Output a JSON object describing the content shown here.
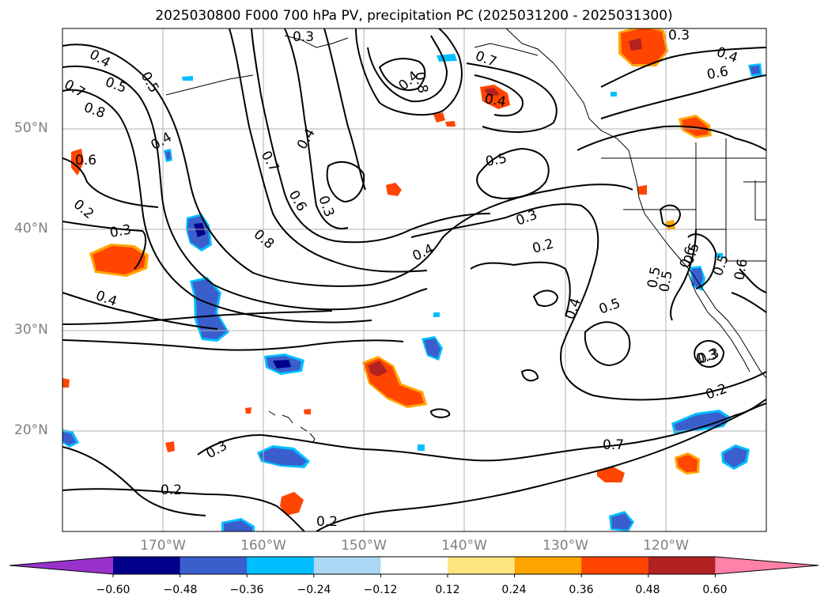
{
  "title": "2025030800 F000 700 hPa PV, precipitation PC (2025031200 - 2025031300)",
  "map": {
    "lat_labels": [
      "50°N",
      "40°N",
      "30°N",
      "20°N"
    ],
    "lon_labels": [
      "170°W",
      "160°W",
      "150°W",
      "140°W",
      "130°W",
      "120°W"
    ],
    "extent": {
      "lon_min": -180,
      "lon_max": -110,
      "lat_min": 10,
      "lat_max": 60
    },
    "gridlines": true,
    "contour_color": "#000000",
    "contour_labels": [
      "0.3",
      "0.4",
      "0.5",
      "0.5",
      "0.7",
      "0.8",
      "0.6",
      "0.4",
      "0.2",
      "0.3",
      "0.4",
      "0.4",
      "0.7",
      "0.6",
      "0.8",
      "0.3",
      "0.4",
      "0.8",
      "0.7",
      "0.4",
      "0.3",
      "0.5",
      "0.3",
      "0.2",
      "0.4",
      "0.4",
      "0.5",
      "0.5",
      "0.6",
      "0.4",
      "0.6",
      "0.5",
      "0.5",
      "0.3",
      "0.2",
      "0.3",
      "0.2",
      "0.2",
      "0.7",
      "0.6",
      "0.5",
      "0.3"
    ]
  },
  "colorbar": {
    "ticks": [
      "−0.60",
      "−0.48",
      "−0.36",
      "−0.24",
      "−0.12",
      "0.12",
      "0.24",
      "0.36",
      "0.48",
      "0.60"
    ],
    "colors": [
      "#9932cc",
      "#00008b",
      "#3a5fcd",
      "#00bfff",
      "#add8f5",
      "#ffffff",
      "#ffe680",
      "#ffa500",
      "#ff4500",
      "#b22222",
      "#ff82a8"
    ],
    "extend": "both"
  }
}
